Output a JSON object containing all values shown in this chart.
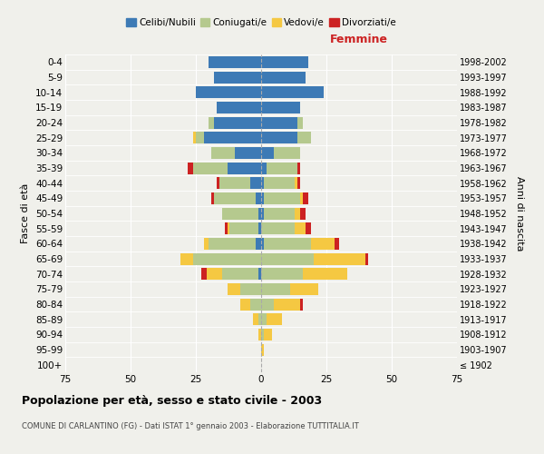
{
  "age_groups": [
    "100+",
    "95-99",
    "90-94",
    "85-89",
    "80-84",
    "75-79",
    "70-74",
    "65-69",
    "60-64",
    "55-59",
    "50-54",
    "45-49",
    "40-44",
    "35-39",
    "30-34",
    "25-29",
    "20-24",
    "15-19",
    "10-14",
    "5-9",
    "0-4"
  ],
  "birth_years": [
    "≤ 1902",
    "1903-1907",
    "1908-1912",
    "1913-1917",
    "1918-1922",
    "1923-1927",
    "1928-1932",
    "1933-1937",
    "1938-1942",
    "1943-1947",
    "1948-1952",
    "1953-1957",
    "1958-1962",
    "1963-1967",
    "1968-1972",
    "1973-1977",
    "1978-1982",
    "1983-1987",
    "1988-1992",
    "1993-1997",
    "1998-2002"
  ],
  "males": {
    "celibi": [
      0,
      0,
      0,
      0,
      0,
      0,
      1,
      0,
      2,
      1,
      1,
      2,
      4,
      13,
      10,
      22,
      18,
      17,
      25,
      18,
      20
    ],
    "coniugati": [
      0,
      0,
      0,
      1,
      4,
      8,
      14,
      26,
      18,
      11,
      14,
      16,
      12,
      13,
      9,
      3,
      2,
      0,
      0,
      0,
      0
    ],
    "vedovi": [
      0,
      0,
      1,
      2,
      4,
      5,
      6,
      5,
      2,
      1,
      0,
      0,
      0,
      0,
      0,
      1,
      0,
      0,
      0,
      0,
      0
    ],
    "divorziati": [
      0,
      0,
      0,
      0,
      0,
      0,
      2,
      0,
      0,
      1,
      0,
      1,
      1,
      2,
      0,
      0,
      0,
      0,
      0,
      0,
      0
    ]
  },
  "females": {
    "nubili": [
      0,
      0,
      0,
      0,
      0,
      0,
      0,
      0,
      1,
      0,
      1,
      1,
      1,
      2,
      5,
      14,
      14,
      15,
      24,
      17,
      18
    ],
    "coniugate": [
      0,
      0,
      1,
      2,
      5,
      11,
      16,
      20,
      18,
      13,
      12,
      14,
      12,
      12,
      10,
      5,
      2,
      0,
      0,
      0,
      0
    ],
    "vedove": [
      0,
      1,
      3,
      6,
      10,
      11,
      17,
      20,
      9,
      4,
      2,
      1,
      1,
      0,
      0,
      0,
      0,
      0,
      0,
      0,
      0
    ],
    "divorziate": [
      0,
      0,
      0,
      0,
      1,
      0,
      0,
      1,
      2,
      2,
      2,
      2,
      1,
      1,
      0,
      0,
      0,
      0,
      0,
      0,
      0
    ]
  },
  "colors": {
    "celibi": "#3d7ab5",
    "coniugati": "#b5c98e",
    "vedovi": "#f5c842",
    "divorziati": "#cc2222"
  },
  "xlim": 75,
  "title": "Popolazione per età, sesso e stato civile - 2003",
  "subtitle": "COMUNE DI CARLANTINO (FG) - Dati ISTAT 1° gennaio 2003 - Elaborazione TUTTITALIA.IT",
  "ylabel_left": "Fasce di età",
  "ylabel_right": "Anni di nascita",
  "label_femmine": "Femmine",
  "legend_labels": [
    "Celibi/Nubili",
    "Coniugati/e",
    "Vedovi/e",
    "Divorziati/e"
  ],
  "bg_color": "#f0f0eb"
}
